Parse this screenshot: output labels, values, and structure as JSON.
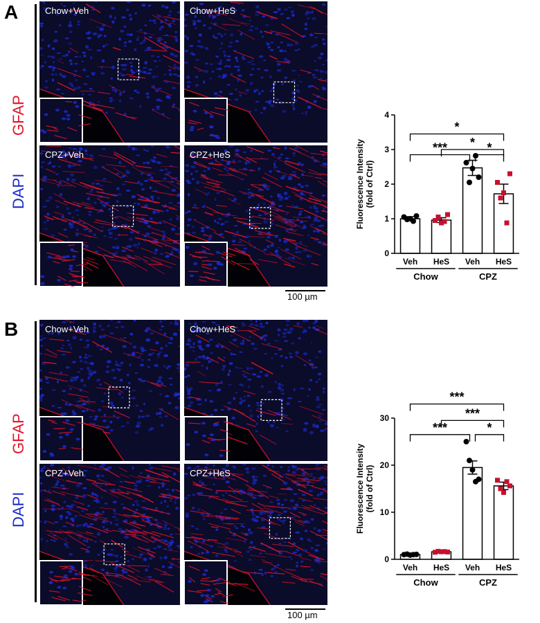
{
  "figure": {
    "panels": [
      {
        "letter": "A",
        "stain_top": "GFAP",
        "stain_bottom": "DAPI",
        "images": [
          "Chow+Veh",
          "Chow+HeS",
          "CPZ+Veh",
          "CPZ+HeS"
        ],
        "scale_bar": "100 µm"
      },
      {
        "letter": "B",
        "stain_top": "GFAP",
        "stain_bottom": "DAPI",
        "images": [
          "Chow+Veh",
          "Chow+HeS",
          "CPZ+Veh",
          "CPZ+HeS"
        ],
        "scale_bar": "100 µm"
      }
    ],
    "colors": {
      "gfap": "#e0142a",
      "dapi": "#1a2ccc",
      "hes_points": "#c8102e",
      "veh_points": "#000000"
    }
  },
  "chart_data": [
    {
      "type": "bar",
      "ylabel": "Fluorescence Intensity (fold of Ctrl)",
      "ylabel_lines": [
        "Fluorescence Intensity",
        "(fold of Ctrl)"
      ],
      "ylim": [
        0,
        4
      ],
      "yticks": [
        0,
        1,
        2,
        3,
        4
      ],
      "categories": [
        "Veh",
        "HeS",
        "Veh",
        "HeS"
      ],
      "groups": [
        {
          "label": "Chow",
          "span": [
            0,
            1
          ]
        },
        {
          "label": "CPZ",
          "span": [
            2,
            3
          ]
        }
      ],
      "values": [
        1.0,
        0.96,
        2.47,
        1.72
      ],
      "errors": [
        0.06,
        0.07,
        0.22,
        0.28
      ],
      "points": [
        [
          1.05,
          0.98,
          1.0,
          0.93,
          1.08
        ],
        [
          0.95,
          1.05,
          0.88,
          0.92,
          1.12
        ],
        [
          2.62,
          2.05,
          2.45,
          2.82,
          2.2
        ],
        [
          2.05,
          1.6,
          1.75,
          0.88,
          2.3
        ]
      ],
      "point_colors": [
        "#000000",
        "#c8102e",
        "#000000",
        "#c8102e"
      ],
      "comparisons": [
        {
          "from": 0,
          "to": 3,
          "label": "*",
          "y": 3.45
        },
        {
          "from": 1,
          "to": 3,
          "label": "*",
          "y": 3.0
        },
        {
          "from": 0,
          "to": 2,
          "label": "***",
          "y": 2.85
        },
        {
          "from": 2,
          "to": 3,
          "label": "*",
          "y": 2.85
        }
      ]
    },
    {
      "type": "bar",
      "ylabel": "Fluorescence Intensity (fold of Ctrl)",
      "ylabel_lines": [
        "Fluorescence Intensity",
        "(fold of Ctrl)"
      ],
      "ylim": [
        0,
        30
      ],
      "yticks": [
        0,
        10,
        20,
        30
      ],
      "categories": [
        "Veh",
        "HeS",
        "Veh",
        "HeS"
      ],
      "groups": [
        {
          "label": "Chow",
          "span": [
            0,
            1
          ]
        },
        {
          "label": "CPZ",
          "span": [
            2,
            3
          ]
        }
      ],
      "values": [
        1.0,
        1.6,
        19.5,
        15.6
      ],
      "errors": [
        0.1,
        0.15,
        1.4,
        0.8
      ],
      "points": [
        [
          1.0,
          1.1,
          0.9,
          1.0,
          1.05
        ],
        [
          1.5,
          1.7,
          1.6,
          1.65,
          1.55
        ],
        [
          25.0,
          21.0,
          19.0,
          16.5,
          17.0
        ],
        [
          16.8,
          15.0,
          14.2,
          16.5,
          15.6
        ]
      ],
      "point_colors": [
        "#000000",
        "#c8102e",
        "#000000",
        "#c8102e"
      ],
      "comparisons": [
        {
          "from": 0,
          "to": 3,
          "label": "***",
          "y": 33.0
        },
        {
          "from": 1,
          "to": 3,
          "label": "***",
          "y": 29.5
        },
        {
          "from": 0,
          "to": 2,
          "label": "***",
          "y": 26.5
        },
        {
          "from": 2,
          "to": 3,
          "label": "*",
          "y": 26.5
        }
      ]
    }
  ]
}
